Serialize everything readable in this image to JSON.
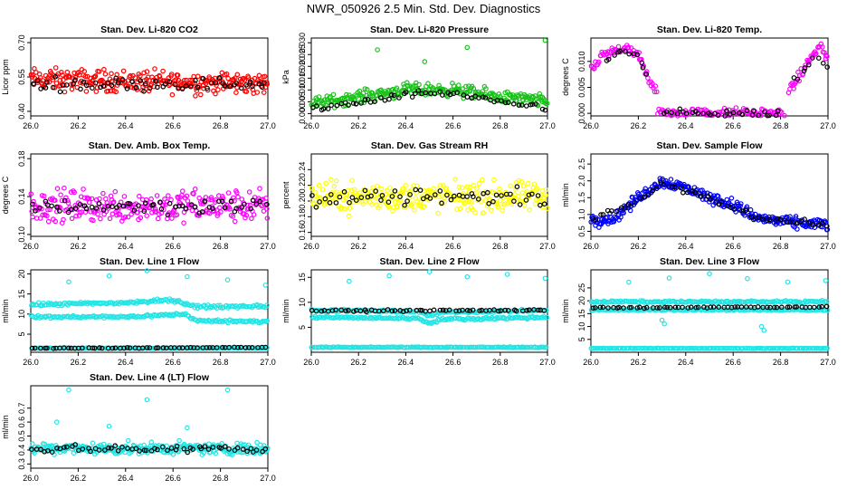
{
  "page": {
    "title": "NWR_050926  2.5 Min. Std. Dev. Diagnostics"
  },
  "colors": {
    "red": "#ff0000",
    "green": "#19c319",
    "magenta": "#ff00ff",
    "yellow": "#ffff00",
    "blue": "#0000ff",
    "cyan": "#22e5e5",
    "black": "#000000"
  },
  "chart_data": [
    {
      "id": "co2",
      "type": "scatter",
      "title": "Stan. Dev. Li-820 CO2",
      "ylabel": "Licor ppm",
      "xlim": [
        26.0,
        27.0
      ],
      "ylim": [
        0.38,
        0.72
      ],
      "xticks": [
        "26.0",
        "26.2",
        "26.4",
        "26.6",
        "26.8",
        "27.0"
      ],
      "yticks": [
        "0.40",
        "0.55",
        "0.70"
      ],
      "point_color": "red",
      "marker_color": "black",
      "series": [
        {
          "name": "points",
          "x": [
            26.0,
            26.25,
            26.5,
            26.75,
            27.0
          ],
          "y": [
            0.45,
            0.62,
            0.5,
            0.58,
            0.48
          ],
          "trend": [
            [
              26.0,
              0.54
            ],
            [
              26.5,
              0.53
            ],
            [
              27.0,
              0.52
            ]
          ],
          "spread": 0.07
        },
        {
          "name": "markers",
          "x": [
            26.0,
            27.0
          ],
          "trend": [
            [
              26.0,
              0.52
            ],
            [
              27.0,
              0.52
            ]
          ],
          "spread": 0.04
        }
      ]
    },
    {
      "id": "pressure",
      "type": "scatter",
      "title": "Stan. Dev. Li-820 Pressure",
      "ylabel": "kPa",
      "xlim": [
        26.0,
        27.0
      ],
      "ylim": [
        -0.001,
        0.032
      ],
      "xticks": [
        "26.0",
        "26.2",
        "26.4",
        "26.6",
        "26.8",
        "27.0"
      ],
      "yticks": [
        "0.000",
        "0.005",
        "0.010",
        "0.015",
        "0.020",
        "0.025",
        "0.030"
      ],
      "point_color": "green",
      "marker_color": "black",
      "series": [
        {
          "name": "points",
          "trend": [
            [
              26.0,
              0.004
            ],
            [
              26.2,
              0.007
            ],
            [
              26.4,
              0.01
            ],
            [
              26.6,
              0.01
            ],
            [
              26.8,
              0.007
            ],
            [
              27.0,
              0.005
            ]
          ],
          "spread": 0.004,
          "outliers": [
            [
              26.28,
              0.027
            ],
            [
              26.48,
              0.022
            ],
            [
              26.66,
              0.028
            ],
            [
              26.99,
              0.031
            ]
          ]
        },
        {
          "name": "markers",
          "trend": [
            [
              26.0,
              0.002
            ],
            [
              26.3,
              0.006
            ],
            [
              26.5,
              0.009
            ],
            [
              26.7,
              0.007
            ],
            [
              27.0,
              0.002
            ]
          ],
          "spread": 0.002
        }
      ]
    },
    {
      "id": "temp",
      "type": "scatter",
      "title": "Stan. Dev. Li-820 Temp.",
      "ylabel": "degrees C",
      "xlim": [
        26.0,
        27.0
      ],
      "ylim": [
        -0.0005,
        0.0145
      ],
      "xticks": [
        "26.0",
        "26.2",
        "26.4",
        "26.6",
        "26.8",
        "27.0"
      ],
      "yticks": [
        "0.000",
        "0.005",
        "0.010"
      ],
      "point_color": "magenta",
      "marker_color": "black",
      "series": [
        {
          "name": "points",
          "segments": [
            [
              [
                26.0,
                0.008
              ],
              [
                26.05,
                0.011
              ],
              [
                26.1,
                0.012
              ],
              [
                26.15,
                0.013
              ],
              [
                26.2,
                0.011
              ],
              [
                26.25,
                0.006
              ],
              [
                26.28,
                0.004
              ]
            ],
            [
              [
                26.28,
                0.0
              ],
              [
                26.55,
                0.0
              ],
              [
                26.82,
                0.0
              ]
            ],
            [
              [
                26.83,
                0.004
              ],
              [
                26.88,
                0.007
              ],
              [
                26.93,
                0.011
              ],
              [
                26.97,
                0.013
              ],
              [
                27.0,
                0.01
              ]
            ]
          ],
          "spread": 0.0015
        },
        {
          "name": "markers",
          "segments": [
            [
              [
                26.05,
                0.01
              ],
              [
                26.12,
                0.012
              ],
              [
                26.2,
                0.011
              ],
              [
                26.25,
                0.006
              ]
            ],
            [
              [
                26.3,
                0.0
              ],
              [
                26.8,
                0.0
              ]
            ],
            [
              [
                26.85,
                0.006
              ],
              [
                26.95,
                0.011
              ],
              [
                27.0,
                0.009
              ]
            ]
          ],
          "spread": 0.001
        }
      ]
    },
    {
      "id": "boxtemp",
      "type": "scatter",
      "title": "Stan. Dev. Amb. Box Temp.",
      "ylabel": "degrees C",
      "xlim": [
        26.0,
        27.0
      ],
      "ylim": [
        0.098,
        0.185
      ],
      "xticks": [
        "26.0",
        "26.2",
        "26.4",
        "26.6",
        "26.8",
        "27.0"
      ],
      "yticks": [
        "0.10",
        "0.14",
        "0.18"
      ],
      "point_color": "magenta",
      "marker_color": "black",
      "series": [
        {
          "name": "points",
          "trend": [
            [
              26.0,
              0.13
            ],
            [
              27.0,
              0.13
            ]
          ],
          "spread": 0.025
        },
        {
          "name": "markers",
          "trend": [
            [
              26.0,
              0.13
            ],
            [
              27.0,
              0.13
            ]
          ],
          "spread": 0.012
        }
      ]
    },
    {
      "id": "rh",
      "type": "scatter",
      "title": "Stan. Dev. Gas Stream RH",
      "ylabel": "percent",
      "xlim": [
        26.0,
        27.0
      ],
      "ylim": [
        0.155,
        0.26
      ],
      "xticks": [
        "26.0",
        "26.2",
        "26.4",
        "26.6",
        "26.8",
        "27.0"
      ],
      "yticks": [
        "0.16",
        "0.18",
        "0.20",
        "0.22",
        "0.24"
      ],
      "point_color": "yellow",
      "marker_color": "black",
      "series": [
        {
          "name": "points",
          "trend": [
            [
              26.0,
              0.205
            ],
            [
              27.0,
              0.205
            ]
          ],
          "spread": 0.028
        },
        {
          "name": "markers",
          "trend": [
            [
              26.0,
              0.205
            ],
            [
              27.0,
              0.205
            ]
          ],
          "spread": 0.018
        }
      ]
    },
    {
      "id": "sampleflow",
      "type": "scatter",
      "title": "Stan. Dev. Sample Flow",
      "ylabel": "ml/min",
      "xlim": [
        26.0,
        27.0
      ],
      "ylim": [
        0.35,
        2.8
      ],
      "xticks": [
        "26.0",
        "26.2",
        "26.4",
        "26.6",
        "26.8",
        "27.0"
      ],
      "yticks": [
        "0.5",
        "1.0",
        "1.5",
        "2.0",
        "2.5"
      ],
      "point_color": "blue",
      "marker_color": "black",
      "series": [
        {
          "name": "points",
          "trend": [
            [
              26.0,
              0.8
            ],
            [
              26.1,
              0.9
            ],
            [
              26.2,
              1.5
            ],
            [
              26.3,
              2.0
            ],
            [
              26.4,
              1.8
            ],
            [
              26.5,
              1.5
            ],
            [
              26.6,
              1.3
            ],
            [
              26.7,
              0.9
            ],
            [
              26.85,
              0.75
            ],
            [
              27.0,
              0.7
            ]
          ],
          "spread": 0.25
        },
        {
          "name": "markers",
          "trend": [
            [
              26.0,
              0.8
            ],
            [
              26.2,
              1.4
            ],
            [
              26.3,
              1.9
            ],
            [
              26.5,
              1.5
            ],
            [
              26.7,
              0.9
            ],
            [
              27.0,
              0.7
            ]
          ],
          "spread": 0.12
        }
      ]
    },
    {
      "id": "line1",
      "type": "scatter",
      "title": "Stan. Dev. Line 1 Flow",
      "ylabel": "ml/min",
      "xlim": [
        26.0,
        27.0
      ],
      "ylim": [
        0.5,
        21
      ],
      "xticks": [
        "26.0",
        "26.2",
        "26.4",
        "26.6",
        "26.8",
        "27.0"
      ],
      "yticks": [
        "5",
        "10",
        "15",
        "20"
      ],
      "point_color": "cyan",
      "marker_color": "black",
      "series": [
        {
          "name": "band-high",
          "trend": [
            [
              26.0,
              12.3
            ],
            [
              26.4,
              12.8
            ],
            [
              26.6,
              13.5
            ],
            [
              26.7,
              11.8
            ],
            [
              27.0,
              12.0
            ]
          ],
          "spread": 0.6
        },
        {
          "name": "band-mid",
          "trend": [
            [
              26.0,
              9.3
            ],
            [
              26.4,
              9.3
            ],
            [
              26.65,
              10.0
            ],
            [
              26.7,
              8.3
            ],
            [
              27.0,
              8.2
            ]
          ],
          "spread": 0.5
        },
        {
          "name": "band-low",
          "trend": [
            [
              26.0,
              1.5
            ],
            [
              27.0,
              1.6
            ]
          ],
          "spread": 0.15
        },
        {
          "name": "outliers",
          "points": [
            [
              26.16,
              18
            ],
            [
              26.33,
              19.5
            ],
            [
              26.49,
              20.8
            ],
            [
              26.66,
              19.3
            ],
            [
              26.83,
              18.5
            ],
            [
              26.99,
              17.2
            ]
          ]
        },
        {
          "name": "markers",
          "trend": [
            [
              26.0,
              1.5
            ],
            [
              27.0,
              1.7
            ]
          ],
          "spread": 0.12
        }
      ]
    },
    {
      "id": "line2",
      "type": "scatter",
      "title": "Stan. Dev. Line 2 Flow",
      "ylabel": "ml/min",
      "xlim": [
        26.0,
        27.0
      ],
      "ylim": [
        0,
        16.5
      ],
      "xticks": [
        "26.0",
        "26.2",
        "26.4",
        "26.6",
        "26.8",
        "27.0"
      ],
      "yticks": [
        "5",
        "10",
        "15"
      ],
      "point_color": "cyan",
      "marker_color": "black",
      "series": [
        {
          "name": "band-high",
          "trend": [
            [
              26.0,
              8.4
            ],
            [
              26.45,
              8.2
            ],
            [
              26.5,
              7.3
            ],
            [
              26.55,
              8.0
            ],
            [
              27.0,
              8.4
            ]
          ],
          "spread": 0.35
        },
        {
          "name": "band-mid",
          "trend": [
            [
              26.0,
              7.0
            ],
            [
              26.45,
              6.8
            ],
            [
              26.5,
              5.8
            ],
            [
              26.55,
              6.6
            ],
            [
              27.0,
              7.0
            ]
          ],
          "spread": 0.35
        },
        {
          "name": "band-low",
          "trend": [
            [
              26.0,
              1.0
            ],
            [
              27.0,
              1.0
            ]
          ],
          "spread": 0.12
        },
        {
          "name": "outliers",
          "points": [
            [
              26.16,
              14.2
            ],
            [
              26.33,
              15.3
            ],
            [
              26.5,
              16.1
            ],
            [
              26.66,
              15.1
            ],
            [
              26.83,
              15.6
            ],
            [
              26.99,
              14.8
            ]
          ]
        },
        {
          "name": "markers",
          "trend": [
            [
              26.0,
              8.3
            ],
            [
              27.0,
              8.4
            ]
          ],
          "spread": 0.25
        }
      ]
    },
    {
      "id": "line3",
      "type": "scatter",
      "title": "Stan. Dev. Line 3 Flow",
      "ylabel": "ml/min",
      "xlim": [
        26.0,
        27.0
      ],
      "ylim": [
        0,
        32
      ],
      "xticks": [
        "26.0",
        "26.2",
        "26.4",
        "26.6",
        "26.8",
        "27.0"
      ],
      "yticks": [
        "5",
        "10",
        "15",
        "20",
        "25"
      ],
      "point_color": "cyan",
      "marker_color": "black",
      "series": [
        {
          "name": "band-high",
          "trend": [
            [
              26.0,
              19.6
            ],
            [
              27.0,
              19.6
            ]
          ],
          "spread": 0.6
        },
        {
          "name": "band-mid",
          "trend": [
            [
              26.0,
              16.5
            ],
            [
              27.0,
              16.5
            ]
          ],
          "spread": 0.5
        },
        {
          "name": "band-low",
          "trend": [
            [
              26.0,
              1.5
            ],
            [
              27.0,
              1.5
            ]
          ],
          "spread": 0.15
        },
        {
          "name": "outliers",
          "points": [
            [
              26.16,
              27.2
            ],
            [
              26.33,
              28.8
            ],
            [
              26.5,
              30.5
            ],
            [
              26.66,
              28.6
            ],
            [
              26.83,
              27.3
            ],
            [
              26.99,
              27.8
            ],
            [
              26.31,
              11.0
            ],
            [
              26.3,
              12.5
            ],
            [
              26.72,
              10.0
            ],
            [
              26.73,
              8.5
            ]
          ]
        },
        {
          "name": "markers",
          "trend": [
            [
              26.0,
              17.3
            ],
            [
              27.0,
              17.6
            ]
          ],
          "spread": 0.35
        }
      ]
    },
    {
      "id": "line4",
      "type": "scatter",
      "title": "Stan. Dev. Line 4 (LT) Flow",
      "ylabel": "ml/min",
      "xlim": [
        26.0,
        27.0
      ],
      "ylim": [
        0.27,
        0.86
      ],
      "xticks": [
        "26.0",
        "26.2",
        "26.4",
        "26.6",
        "26.8",
        "27.0"
      ],
      "yticks": [
        "0.3",
        "0.4",
        "0.5",
        "0.6",
        "0.7"
      ],
      "point_color": "cyan",
      "marker_color": "black",
      "series": [
        {
          "name": "points",
          "trend": [
            [
              26.0,
              0.41
            ],
            [
              27.0,
              0.41
            ]
          ],
          "spread": 0.06,
          "outliers": [
            [
              26.16,
              0.83
            ],
            [
              26.49,
              0.76
            ],
            [
              26.83,
              0.83
            ],
            [
              26.11,
              0.6
            ],
            [
              26.33,
              0.57
            ],
            [
              26.66,
              0.56
            ]
          ]
        },
        {
          "name": "markers",
          "trend": [
            [
              26.0,
              0.41
            ],
            [
              27.0,
              0.41
            ]
          ],
          "spread": 0.04
        }
      ]
    }
  ]
}
